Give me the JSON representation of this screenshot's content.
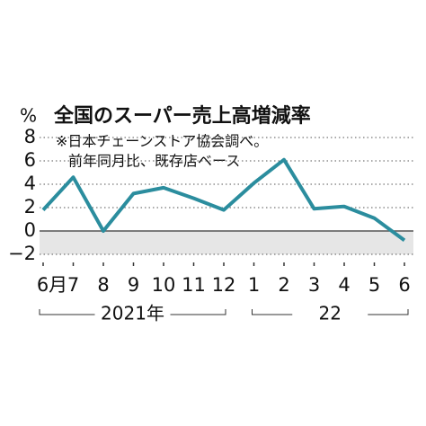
{
  "chart_data": {
    "type": "line",
    "title": "全国のスーパー売上高増減率",
    "subtitle": [
      "※日本チェーンストア協会調べ。",
      "前年同月比、既存店ベース"
    ],
    "y_label": "%",
    "categories": [
      "6月",
      "7",
      "8",
      "9",
      "10",
      "11",
      "12",
      "1",
      "2",
      "3",
      "4",
      "5",
      "6"
    ],
    "x_groups": [
      "2021年",
      "22"
    ],
    "values": [
      1.8,
      4.6,
      0.0,
      3.2,
      3.7,
      2.8,
      1.8,
      4.1,
      6.1,
      1.9,
      2.1,
      1.1,
      -0.8
    ],
    "color": "#2b8d9e",
    "ylim": [
      -2,
      8
    ],
    "yticks": [
      {
        "value": -2,
        "label": "−2"
      },
      0,
      2,
      4,
      6,
      8
    ],
    "grid": true
  }
}
